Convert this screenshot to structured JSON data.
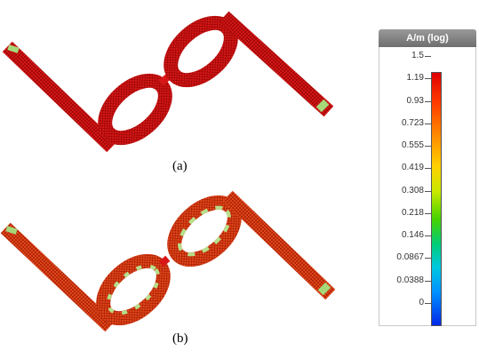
{
  "captions": {
    "a": "(a)",
    "b": "(b)"
  },
  "legend": {
    "title": "A/m (log)",
    "ticks": [
      "1.5",
      "1.19",
      "0.93",
      "0.723",
      "0.555",
      "0.419",
      "0.308",
      "0.218",
      "0.146",
      "0.0867",
      "0.0388",
      "0"
    ]
  },
  "colors": {
    "high": "#d81010",
    "mid_high": "#ff8c00",
    "mid": "#ffd000",
    "mid_low": "#46d200",
    "low": "#0028e8"
  }
}
